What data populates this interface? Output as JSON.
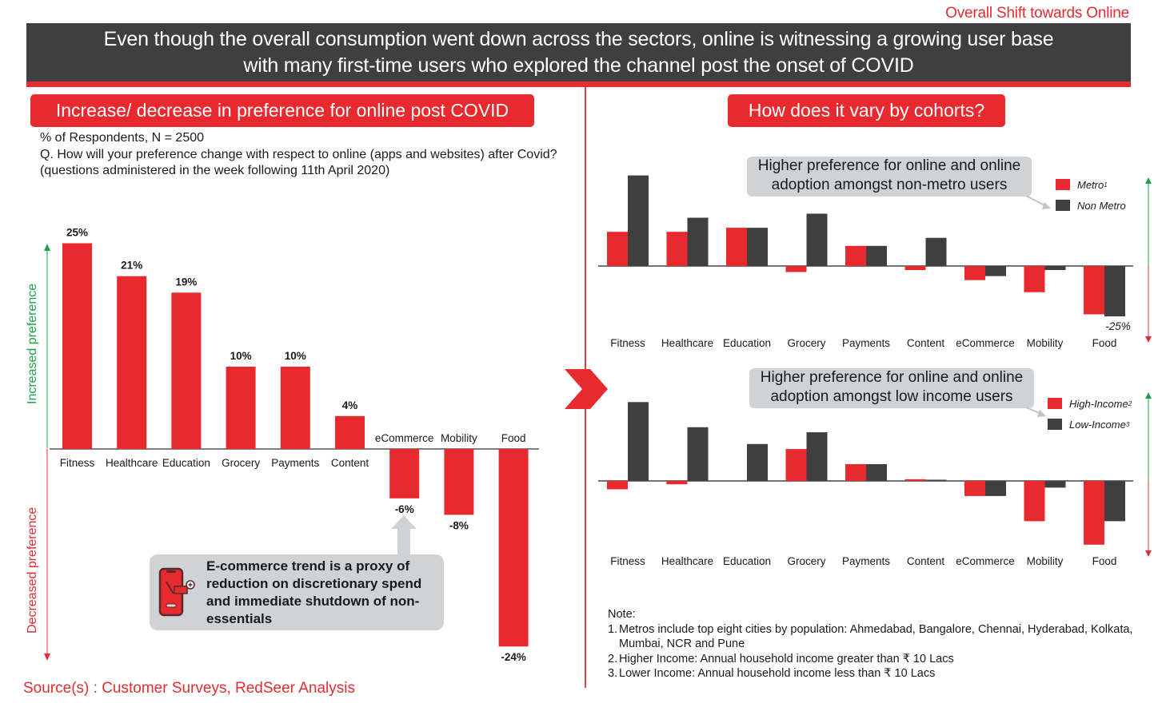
{
  "header": {
    "section_tag": "Overall Shift towards Online",
    "headline_line1": "Even though the overall consumption went down across the sectors, online is witnessing  a growing user base",
    "headline_line2": "with many first-time users who explored the channel post the onset of COVID"
  },
  "left_panel": {
    "title": "Increase/ decrease in preference for online post COVID",
    "respondents": "% of Respondents, N = 2500",
    "question": "Q. How will your preference change with respect to online (apps and websites) after Covid?",
    "note": "(questions administered in the week following 11th April 2020)",
    "axis_up_label": "Increased preference",
    "axis_down_label": "Decreased preference",
    "callout": "E-commerce trend is a proxy of reduction on discretionary spend and immediate shutdown of non-essentials",
    "callout_icon": "mobile-shopping-cart-icon"
  },
  "right_panel": {
    "title": "How does it vary by cohorts?",
    "top_note": "Higher preference for online and online adoption amongst  non-metro users",
    "bottom_note": "Higher preference for online and online adoption amongst low income users",
    "legend_top": [
      {
        "label": "Metro",
        "sup": "1",
        "color": "#e8292e"
      },
      {
        "label": "Non Metro",
        "sup": "",
        "color": "#3f3f3f"
      }
    ],
    "legend_bottom": [
      {
        "label": "High-Income",
        "sup": "2",
        "color": "#e8292e"
      },
      {
        "label": "Low-Income",
        "sup": "3",
        "color": "#3f3f3f"
      }
    ],
    "notes_title": "Note:",
    "notes": [
      {
        "num": "1.",
        "text": "Metros include top eight cities by population: Ahmedabad, Bangalore, Chennai, Hyderabad, Kolkata, Mumbai, NCR and Pune"
      },
      {
        "num": "2.",
        "text": "Higher Income: Annual household income greater than ₹ 10 Lacs"
      },
      {
        "num": "3.",
        "text": "Lower Income: Annual household income less than ₹ 10 Lacs"
      }
    ]
  },
  "footer": {
    "source": "Source(s) : Customer Surveys, RedSeer Analysis"
  },
  "colors": {
    "accent_red": "#e8292e",
    "dark_gray": "#3f3f3f",
    "green": "#1fa24a",
    "callout_gray": "#d0d3d6"
  },
  "chart_data": [
    {
      "type": "bar",
      "title": "Increase/ decrease in preference for online post COVID",
      "categories": [
        "Fitness",
        "Healthcare",
        "Education",
        "Grocery",
        "Payments",
        "Content",
        "eCommerce",
        "Mobility",
        "Food"
      ],
      "values": [
        25,
        21,
        19,
        10,
        10,
        4,
        -6,
        -8,
        -24
      ],
      "value_labels": [
        "25%",
        "21%",
        "19%",
        "10%",
        "10%",
        "4%",
        "-6%",
        "-8%",
        "-24%"
      ],
      "ylabel": "% of Respondents",
      "ylim": [
        -25,
        26
      ],
      "grid": false
    },
    {
      "type": "bar",
      "title": "Metro vs Non Metro",
      "categories": [
        "Fitness",
        "Healthcare",
        "Education",
        "Grocery",
        "Payments",
        "Content",
        "eCommerce",
        "Mobility",
        "Food"
      ],
      "series": [
        {
          "name": "Metro",
          "values": [
            17,
            17,
            19,
            -3,
            10,
            -2,
            -7,
            -13,
            -24
          ]
        },
        {
          "name": "Non Metro",
          "values": [
            45,
            24,
            19,
            26,
            10,
            14,
            -5,
            -2,
            -25
          ]
        }
      ],
      "annotations": [
        "-25%"
      ],
      "ylim": [
        -28,
        48
      ],
      "legend": "top-right",
      "grid": false
    },
    {
      "type": "bar",
      "title": "High-Income vs Low-Income",
      "categories": [
        "Fitness",
        "Healthcare",
        "Education",
        "Grocery",
        "Payments",
        "Content",
        "eCommerce",
        "Mobility",
        "Food"
      ],
      "series": [
        {
          "name": "High-Income",
          "values": [
            -5,
            -2,
            0,
            19,
            10,
            1,
            -9,
            -24,
            -38
          ]
        },
        {
          "name": "Low-Income",
          "values": [
            47,
            32,
            22,
            29,
            10,
            0.5,
            -9,
            -4,
            -24
          ]
        }
      ],
      "ylim": [
        -40,
        50
      ],
      "legend": "top-right",
      "grid": false
    }
  ]
}
